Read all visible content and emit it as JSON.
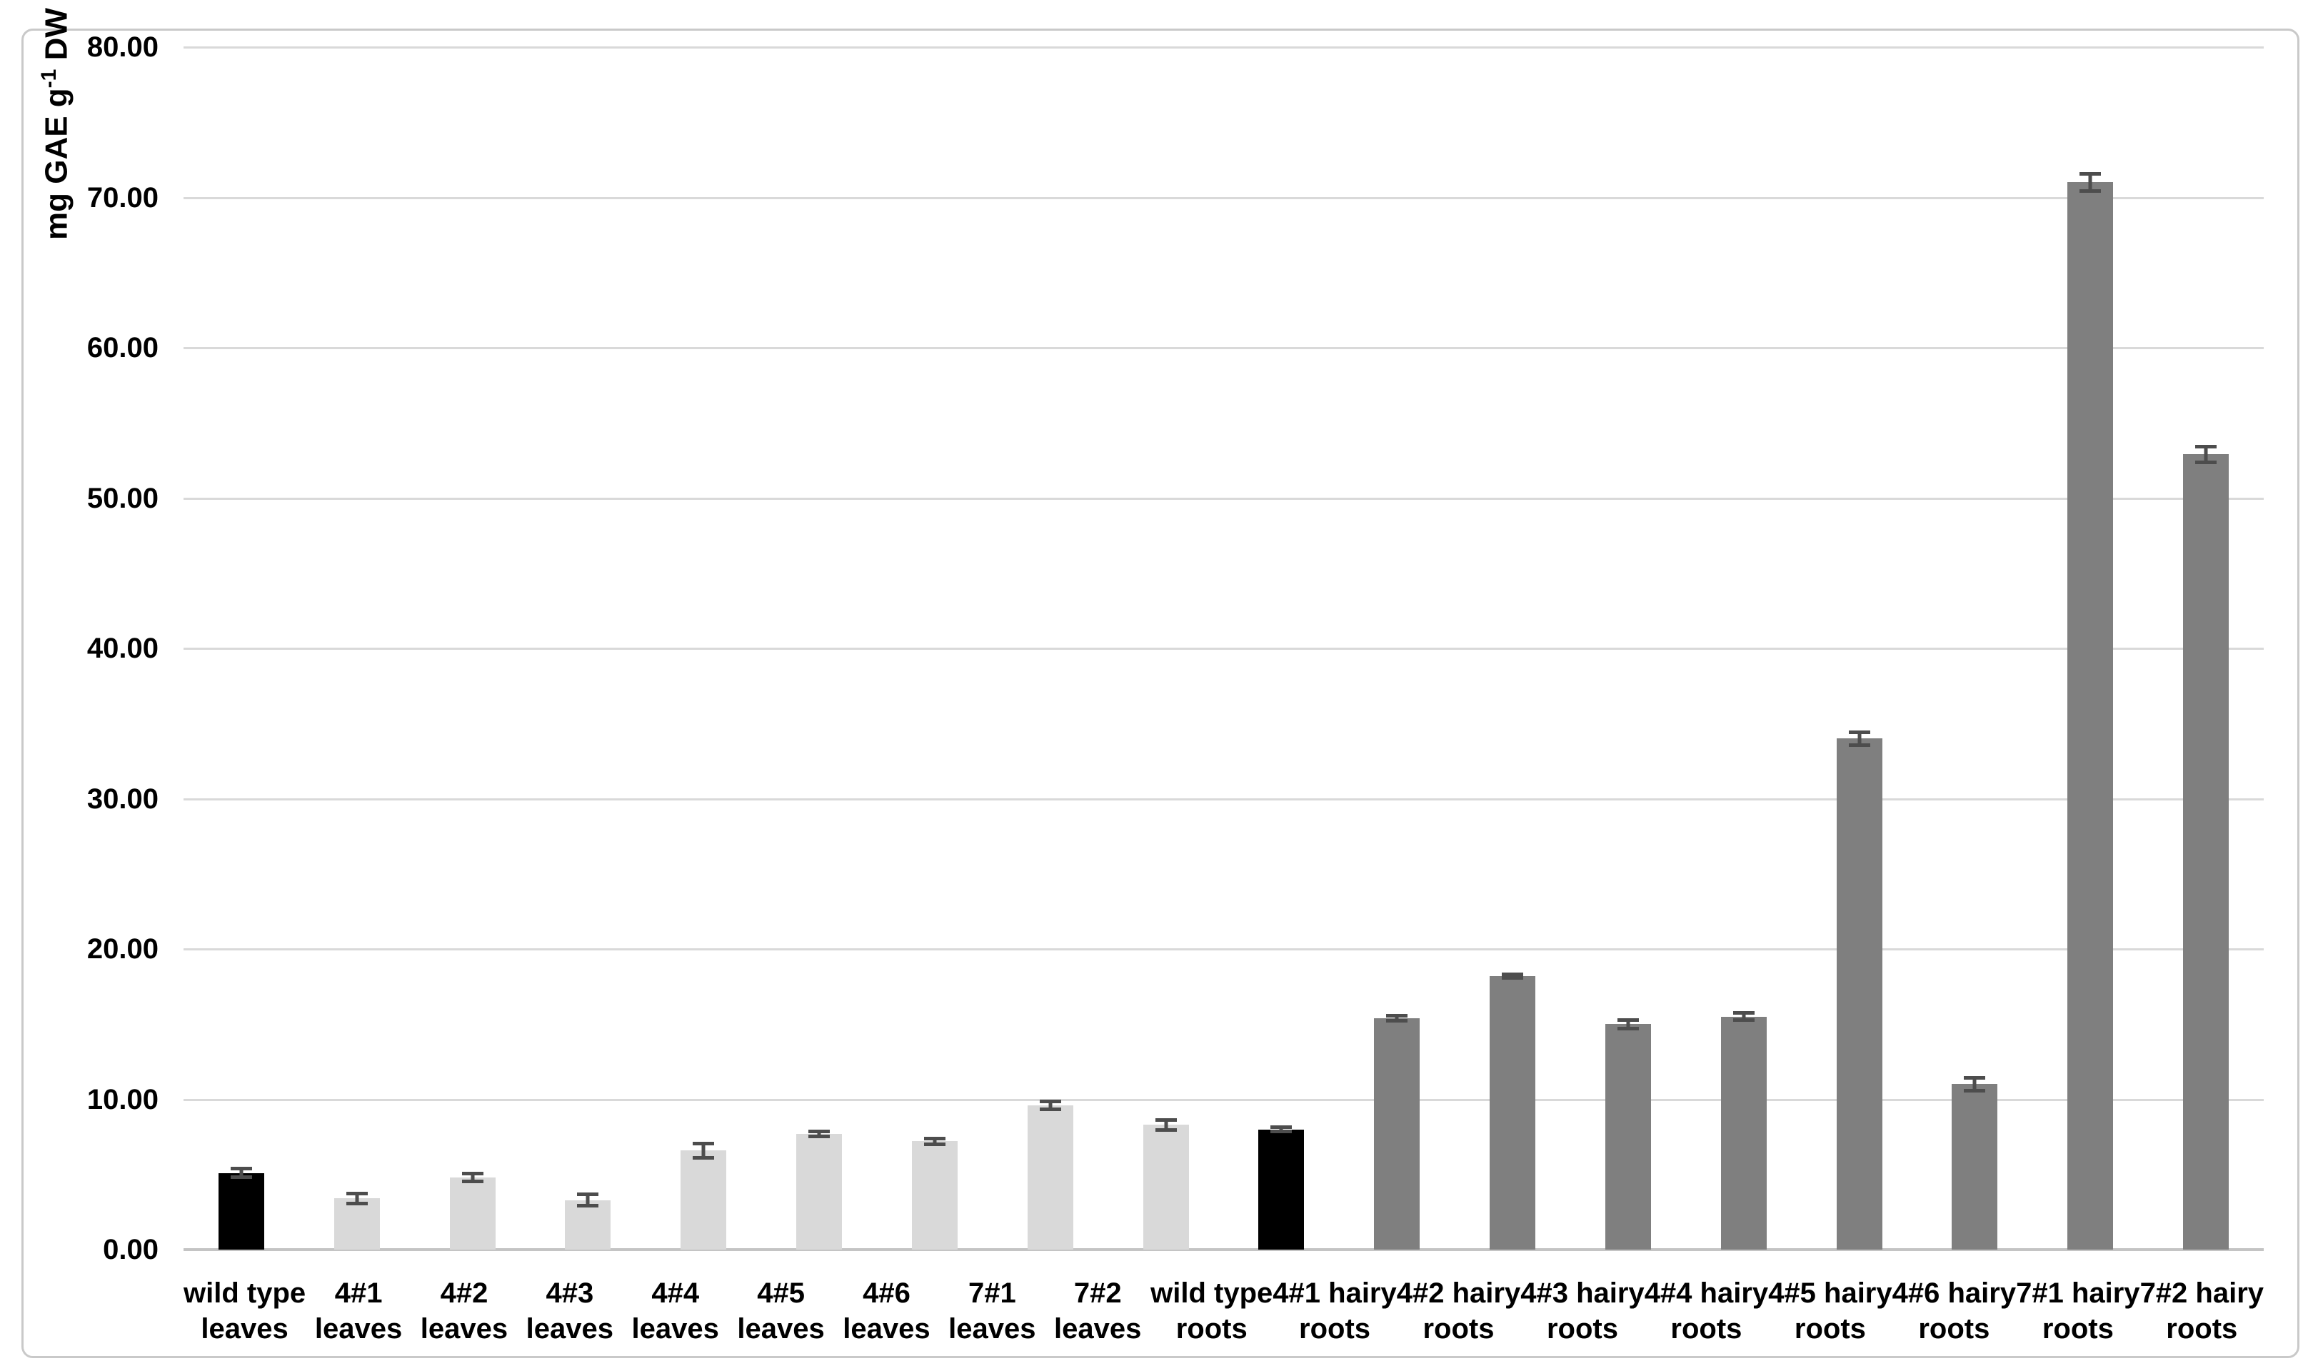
{
  "colors": {
    "background": "#ffffff",
    "chart_border": "#c9c9c9",
    "gridline": "#d9d9d9",
    "axis_line": "#c4c4c4",
    "text": "#000000",
    "error_bar": "#4d4d4d",
    "bar_black": "#000000",
    "bar_light_gray": "#d9d9d9",
    "bar_dark_gray": "#7f7f7f"
  },
  "chart_data": {
    "type": "bar",
    "title": "",
    "xlabel": "",
    "ylabel": {
      "prefix": "mg GAE g",
      "superscript": "-1",
      "suffix": " DW",
      "full": "mg GAE g-1 DW"
    },
    "ylim": [
      0,
      80
    ],
    "ytick_step": 10,
    "ytick_labels": [
      "0.00",
      "10.00",
      "20.00",
      "30.00",
      "40.00",
      "50.00",
      "60.00",
      "70.00",
      "80.00"
    ],
    "grid": true,
    "legend_position": "none",
    "error_bars": true,
    "categories": [
      {
        "label_line1": "wild type",
        "label_line2": "leaves",
        "color_key": "bar_black"
      },
      {
        "label_line1": "4#1",
        "label_line2": "leaves",
        "color_key": "bar_light_gray"
      },
      {
        "label_line1": "4#2",
        "label_line2": "leaves",
        "color_key": "bar_light_gray"
      },
      {
        "label_line1": "4#3",
        "label_line2": "leaves",
        "color_key": "bar_light_gray"
      },
      {
        "label_line1": "4#4",
        "label_line2": "leaves",
        "color_key": "bar_light_gray"
      },
      {
        "label_line1": "4#5",
        "label_line2": "leaves",
        "color_key": "bar_light_gray"
      },
      {
        "label_line1": "4#6",
        "label_line2": "leaves",
        "color_key": "bar_light_gray"
      },
      {
        "label_line1": "7#1",
        "label_line2": "leaves",
        "color_key": "bar_light_gray"
      },
      {
        "label_line1": "7#2",
        "label_line2": "leaves",
        "color_key": "bar_light_gray"
      },
      {
        "label_line1": "wild type",
        "label_line2": "roots",
        "color_key": "bar_black"
      },
      {
        "label_line1": "4#1 hairy",
        "label_line2": "roots",
        "color_key": "bar_dark_gray"
      },
      {
        "label_line1": "4#2 hairy",
        "label_line2": "roots",
        "color_key": "bar_dark_gray"
      },
      {
        "label_line1": "4#3 hairy",
        "label_line2": "roots",
        "color_key": "bar_dark_gray"
      },
      {
        "label_line1": "4#4 hairy",
        "label_line2": "roots",
        "color_key": "bar_dark_gray"
      },
      {
        "label_line1": "4#5 hairy",
        "label_line2": "roots",
        "color_key": "bar_dark_gray"
      },
      {
        "label_line1": "4#6 hairy",
        "label_line2": "roots",
        "color_key": "bar_dark_gray"
      },
      {
        "label_line1": "7#1 hairy",
        "label_line2": "roots",
        "color_key": "bar_dark_gray"
      },
      {
        "label_line1": "7#2 hairy",
        "label_line2": "roots",
        "color_key": "bar_dark_gray"
      }
    ],
    "series": [
      {
        "name": "mg GAE per g DW",
        "values": [
          5.1,
          3.4,
          4.8,
          3.3,
          6.6,
          7.7,
          7.2,
          9.6,
          8.3,
          8.0,
          15.4,
          18.2,
          15.0,
          15.5,
          34.0,
          11.0,
          71.0,
          52.9
        ],
        "errors": [
          0.3,
          0.35,
          0.3,
          0.4,
          0.5,
          0.2,
          0.2,
          0.3,
          0.35,
          0.15,
          0.2,
          0.15,
          0.3,
          0.25,
          0.45,
          0.45,
          0.6,
          0.55
        ]
      }
    ]
  }
}
